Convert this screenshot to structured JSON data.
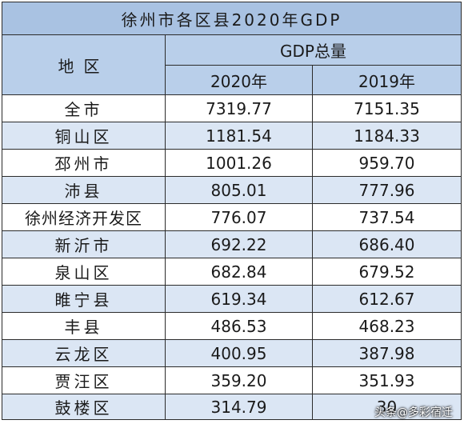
{
  "title": "徐州市各区县2020年GDP",
  "headers": {
    "region": "地区",
    "gdp_total": "GDP总量",
    "year_2020": "2020年",
    "year_2019": "2019年"
  },
  "rows": [
    {
      "name": "全市",
      "v2020": "7319.77",
      "v2019": "7151.35"
    },
    {
      "name": "铜山区",
      "v2020": "1181.54",
      "v2019": "1184.33"
    },
    {
      "name": "邳州市",
      "v2020": "1001.26",
      "v2019": "959.70"
    },
    {
      "name": "沛县",
      "v2020": "805.01",
      "v2019": "777.96"
    },
    {
      "name": "徐州经济开发区",
      "v2020": "776.07",
      "v2019": "737.54"
    },
    {
      "name": "新沂市",
      "v2020": "692.22",
      "v2019": "686.40"
    },
    {
      "name": "泉山区",
      "v2020": "682.84",
      "v2019": "679.52"
    },
    {
      "name": "睢宁县",
      "v2020": "619.34",
      "v2019": "612.67"
    },
    {
      "name": "丰县",
      "v2020": "486.53",
      "v2019": "468.23"
    },
    {
      "name": "云龙区",
      "v2020": "400.95",
      "v2019": "387.98"
    },
    {
      "name": "贾汪区",
      "v2020": "359.20",
      "v2019": "351.93"
    },
    {
      "name": "鼓楼区",
      "v2020": "314.79",
      "v2019": "30"
    }
  ],
  "watermark": {
    "text": "头条@多彩宿迁",
    "icon": "toutiao-logo-icon"
  },
  "colors": {
    "title_bg": "#a9c2e2",
    "header_bg": "#b9cfea",
    "stripe_bg": "#dbe6f4"
  }
}
